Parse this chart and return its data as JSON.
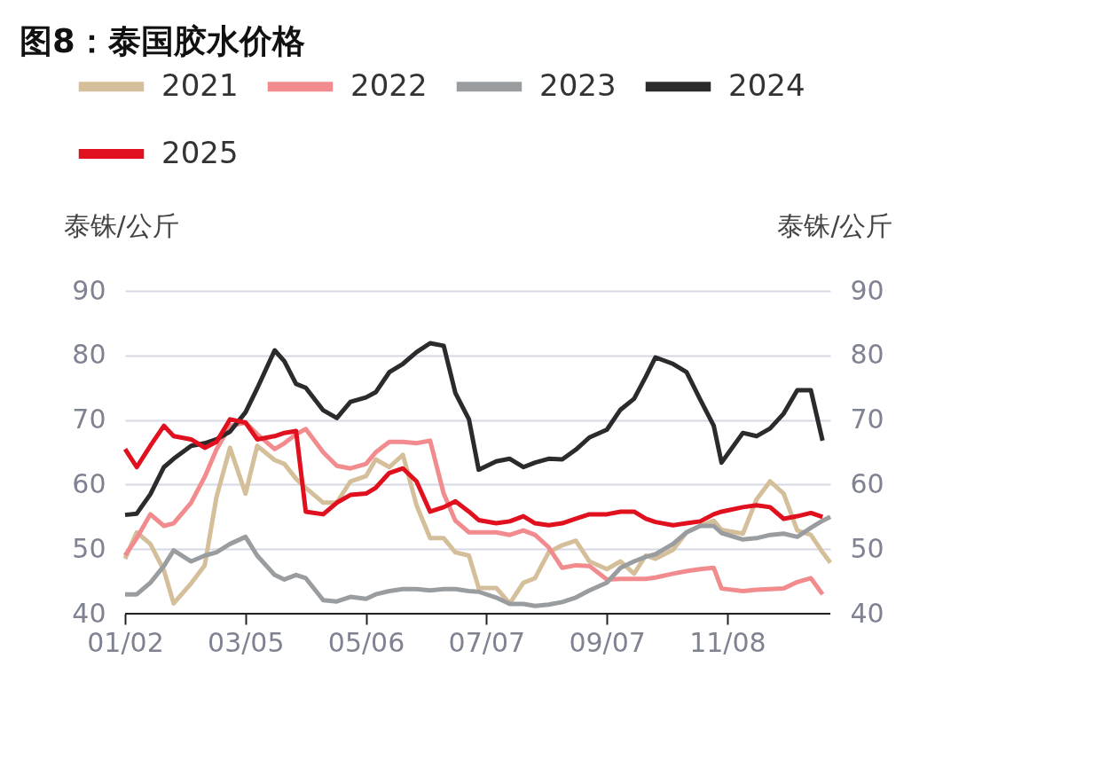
{
  "chart_data": {
    "type": "line",
    "title": "图8：泰国胶水价格",
    "ylabel": "泰铢/公斤",
    "y2label": "泰铢/公斤",
    "x": [
      "--01-02",
      "--01-08",
      "--01-15",
      "--01-22",
      "--01-27",
      "--02-05",
      "--02-12",
      "--02-18",
      "--02-25",
      "--03-05",
      "--03-11",
      "--03-20",
      "--03-25",
      "--03-31",
      "--04-05",
      "--04-14",
      "--04-21",
      "--04-28",
      "--05-06",
      "--05-11",
      "--05-18",
      "--05-25",
      "--06-01",
      "--06-08",
      "--06-15",
      "--06-21",
      "--06-28",
      "--07-03",
      "--07-12",
      "--07-19",
      "--07-26",
      "--08-01",
      "--08-08",
      "--08-15",
      "--08-22",
      "--08-29",
      "--09-07",
      "--09-14",
      "--09-21",
      "--09-27",
      "--10-02",
      "--10-11",
      "--10-18",
      "--10-25",
      "--11-01",
      "--11-05",
      "--11-16",
      "--11-23",
      "--11-30",
      "--12-07",
      "--12-14",
      "--12-21",
      "--12-27",
      "--12-31"
    ],
    "xlim": [
      "--01-02",
      "--12-31"
    ],
    "xticks": [
      {
        "value": "--01-02",
        "label": "01/02"
      },
      {
        "value": "--03-05",
        "label": "03/05"
      },
      {
        "value": "--05-06",
        "label": "05/06"
      },
      {
        "value": "--07-07",
        "label": "07/07"
      },
      {
        "value": "--09-07",
        "label": "09/07"
      },
      {
        "value": "--11-08",
        "label": "11/08"
      }
    ],
    "ylim": [
      40,
      90
    ],
    "yticks": [
      40,
      50,
      60,
      70,
      80,
      90
    ],
    "y2lim": [
      40,
      90
    ],
    "y2ticks": [
      40,
      50,
      60,
      70,
      80,
      90
    ],
    "grid": "y",
    "legend": "top",
    "series": [
      {
        "name": "2021",
        "color": "#d4bf9a",
        "values": [
          48.5,
          52.6,
          50.8,
          46.7,
          41.6,
          44.7,
          47.5,
          58,
          65.7,
          58.6,
          66,
          63.8,
          63.2,
          60.9,
          59.5,
          57.2,
          57.2,
          60.5,
          61.3,
          63.9,
          62.7,
          64.6,
          56.8,
          51.7,
          51.7,
          49.5,
          49,
          44,
          44,
          41.6,
          44.8,
          45.5,
          49.5,
          50.6,
          51.3,
          48.1,
          46.9,
          48.1,
          46.2,
          49,
          48.5,
          49.9,
          52.6,
          53.6,
          54.4,
          53,
          52.4,
          57.7,
          60.5,
          58.6,
          52.9,
          52.2,
          49.5,
          47.9
        ]
      },
      {
        "name": "2022",
        "color": "#f28b8d",
        "values": [
          49,
          51.7,
          55.4,
          53.6,
          54,
          57.2,
          61.2,
          65.4,
          69.1,
          69.6,
          67.8,
          65.5,
          66.4,
          67.8,
          68.6,
          65,
          62.9,
          62.5,
          63.2,
          65,
          66.6,
          66.6,
          66.4,
          66.8,
          58.6,
          54.4,
          52.6,
          52.6,
          52.6,
          52.2,
          52.9,
          52.2,
          50.3,
          47.1,
          47.5,
          47.4,
          45.3,
          45.4,
          45.4,
          45.4,
          45.6,
          46.2,
          46.6,
          46.9,
          47.1,
          43.9,
          43.5,
          43.7,
          43.8,
          43.9,
          44.9,
          45.5,
          43,
          null
        ]
      },
      {
        "name": "2023",
        "color": "#9a9d9f",
        "values": [
          43,
          43,
          44.8,
          47.4,
          49.8,
          48.1,
          49,
          49.5,
          50.8,
          51.9,
          49,
          46,
          45.3,
          46,
          45.5,
          42.1,
          41.9,
          42.6,
          42.3,
          43,
          43.5,
          43.8,
          43.8,
          43.6,
          43.8,
          43.8,
          43.5,
          43.4,
          42.5,
          41.5,
          41.5,
          41.2,
          41.4,
          41.8,
          42.5,
          43.6,
          44.8,
          47.1,
          48.1,
          48.8,
          49.2,
          50.8,
          52.6,
          53.6,
          53.6,
          52.5,
          51.5,
          51.7,
          52.2,
          52.4,
          51.9,
          53.3,
          54.4,
          55
        ]
      },
      {
        "name": "2024",
        "color": "#2b2b2b",
        "values": [
          55.3,
          55.5,
          58.5,
          62.7,
          64,
          66,
          66.4,
          67,
          68.2,
          71.2,
          74.9,
          80.8,
          79.1,
          75.6,
          75,
          71.5,
          70.3,
          72.8,
          73.5,
          74.3,
          77.4,
          78.7,
          80.5,
          81.9,
          81.5,
          74.2,
          70.1,
          62.3,
          63.6,
          64,
          62.7,
          63.4,
          64,
          63.9,
          65.4,
          67.3,
          68.5,
          71.6,
          73.3,
          76.7,
          79.7,
          78.7,
          77.4,
          73.2,
          69.1,
          63.4,
          68,
          67.5,
          68.7,
          71,
          74.6,
          74.6,
          66.8,
          null
        ]
      },
      {
        "name": "2025",
        "color": "#e0101e",
        "values": [
          65.5,
          62.7,
          66,
          69.1,
          67.5,
          67,
          65.7,
          66.6,
          70.1,
          69.6,
          67,
          67.5,
          68,
          68.3,
          55.8,
          55.4,
          57.2,
          58.4,
          58.6,
          59.5,
          61.8,
          62.5,
          60.5,
          55.8,
          56.5,
          57.4,
          55.8,
          54.5,
          54,
          54.3,
          55.1,
          54,
          53.7,
          54,
          54.7,
          55.4,
          55.4,
          55.8,
          55.8,
          54.7,
          54.2,
          53.7,
          54,
          54.3,
          55.4,
          55.8,
          56.5,
          56.8,
          56.5,
          54.7,
          55.1,
          55.6,
          55,
          null
        ]
      }
    ]
  }
}
